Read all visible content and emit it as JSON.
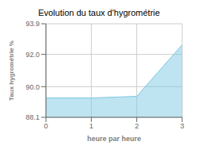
{
  "chart_data": {
    "type": "area",
    "title": "Evolution du taux d'hygrométrie",
    "xlabel": "heure par heure",
    "ylabel": "Taux hygrométrie %",
    "x": [
      0,
      1,
      2,
      3
    ],
    "values": [
      89.3,
      89.3,
      89.4,
      92.6
    ],
    "xlim": [
      0,
      3
    ],
    "ylim": [
      88.1,
      93.9
    ],
    "xticks": [
      0,
      1,
      2,
      3
    ],
    "yticks": [
      88.1,
      {
        "value": 90,
        "label": "90.0"
      },
      {
        "value": 92,
        "label": "92.0"
      },
      93.9
    ],
    "color": "#7ec8e3",
    "grid": true
  }
}
